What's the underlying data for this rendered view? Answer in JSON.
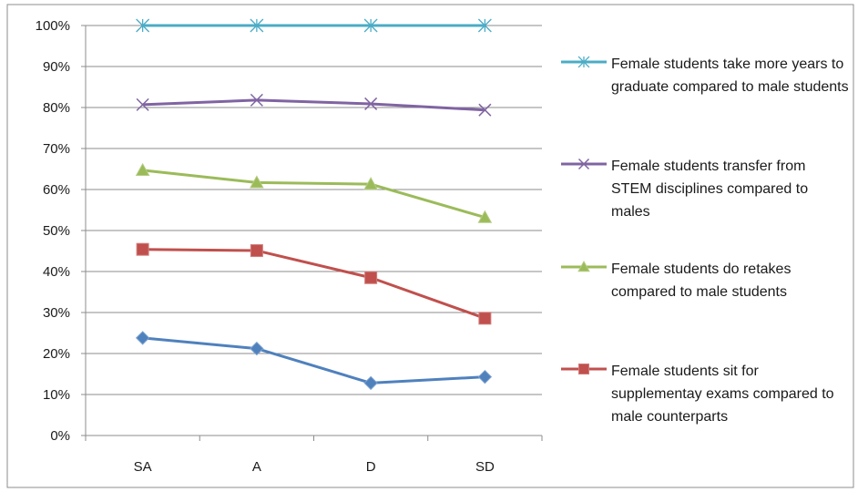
{
  "chart_data": {
    "type": "line",
    "title": "",
    "xlabel": "",
    "ylabel": "",
    "categories": [
      "SA",
      "A",
      "D",
      "SD"
    ],
    "ylim": [
      0,
      100
    ],
    "yticks": [
      "0%",
      "10%",
      "20%",
      "30%",
      "40%",
      "50%",
      "60%",
      "70%",
      "80%",
      "90%",
      "100%"
    ],
    "grid": true,
    "legend_position": "right",
    "series": [
      {
        "name": "Female students take more years to graduate compared to male students",
        "values": [
          100,
          100,
          100,
          100
        ],
        "color": "#4bacc6",
        "marker": "star"
      },
      {
        "name": "Female students transfer from STEM disciplines compared to males",
        "values": [
          80.7,
          81.8,
          80.9,
          79.4
        ],
        "color": "#8064a2",
        "marker": "x"
      },
      {
        "name": "Female students do retakes compared to male students",
        "values": [
          64.7,
          61.7,
          61.3,
          53.2
        ],
        "color": "#9bbb59",
        "marker": "triangle"
      },
      {
        "name": "Female students sit for supplementay exams compared to male counterparts",
        "values": [
          45.4,
          45.1,
          38.5,
          28.6
        ],
        "color": "#c0504d",
        "marker": "square"
      },
      {
        "name": "",
        "values": [
          23.8,
          21.2,
          12.8,
          14.3
        ],
        "color": "#4f81bd",
        "marker": "diamond"
      }
    ]
  }
}
